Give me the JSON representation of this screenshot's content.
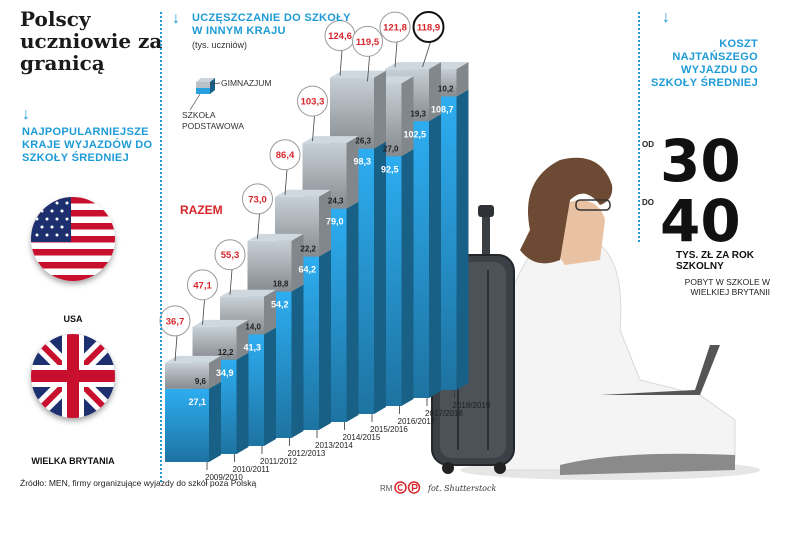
{
  "headline": "Polscy uczniowie za granicą",
  "left_panel": {
    "heading": "NAJPOPULARNIEJSZE KRAJE WYJAZDÓW DO SZKOŁY ŚREDNIEJ",
    "countries": [
      {
        "name": "USA",
        "flag_icon": "usa-flag-icon"
      },
      {
        "name": "WIELKA BRYTANIA",
        "flag_icon": "uk-flag-icon"
      }
    ]
  },
  "source": "Źródło: MEN, firmy organizujące wyjazdy do szkół poza Polską",
  "credit": "fot. Shutterstock",
  "rm_mark": "RM",
  "chart_data": {
    "type": "bar",
    "title": "UCZĘSZCZANIE DO SZKOŁY W INNYM KRAJU",
    "subtitle": "(tys. uczniów)",
    "legend": [
      {
        "name": "GIMNAZJUM",
        "color": "#b9c1c7"
      },
      {
        "name": "SZKOŁA PODSTAWOWA",
        "color": "#2aa0df"
      }
    ],
    "total_label": "RAZEM",
    "categories": [
      "2009/2010",
      "2010/2011",
      "2011/2012",
      "2012/2013",
      "2013/2014",
      "2014/2015",
      "2015/2016",
      "2016/2017",
      "2017/2018",
      "2018/2019"
    ],
    "series": [
      {
        "name": "SZKOŁA PODSTAWOWA",
        "values": [
          27.1,
          34.9,
          41.3,
          54.2,
          64.2,
          79.0,
          98.3,
          92.5,
          102.5,
          108.7
        ]
      },
      {
        "name": "GIMNAZJUM",
        "values": [
          9.6,
          12.2,
          14.0,
          18.8,
          22.2,
          24.3,
          26.3,
          27.0,
          19.3,
          10.2
        ]
      }
    ],
    "totals": [
      36.7,
      47.1,
      55.3,
      73.0,
      86.4,
      103.3,
      124.6,
      119.5,
      121.8,
      118.9
    ],
    "totals_display": [
      "36,7",
      "47,1",
      "55,3",
      "73,0",
      "86,4",
      "103,3",
      "124,6",
      "119,5",
      "121,8",
      "118,9"
    ],
    "primary_display": [
      "27,1",
      "34,9",
      "41,3",
      "54,2",
      "64,2",
      "79,0",
      "98,3",
      "92,5",
      "102,5",
      "108,7"
    ],
    "secondary_display": [
      "9,6",
      "12,2",
      "14,0",
      "18,8",
      "22,2",
      "24,3",
      "26,3",
      "27,0",
      "19,3",
      "10,2"
    ],
    "colors": {
      "primary": "#2aa0df",
      "secondary": "#b9c1c7",
      "total_text": "#d7262b"
    }
  },
  "cost_panel": {
    "heading": "KOSZT NAJTAŃSZEGO WYJAZDU DO SZKOŁY ŚREDNIEJ",
    "from_label": "OD",
    "from_value": "30",
    "to_label": "DO",
    "to_value": "40",
    "unit": "TYS. ZŁ ZA ROK SZKOLNY",
    "note": "POBYT W SZKOLE W WIELKIEJ BRYTANII"
  },
  "accent_color": "#1e9bd7"
}
